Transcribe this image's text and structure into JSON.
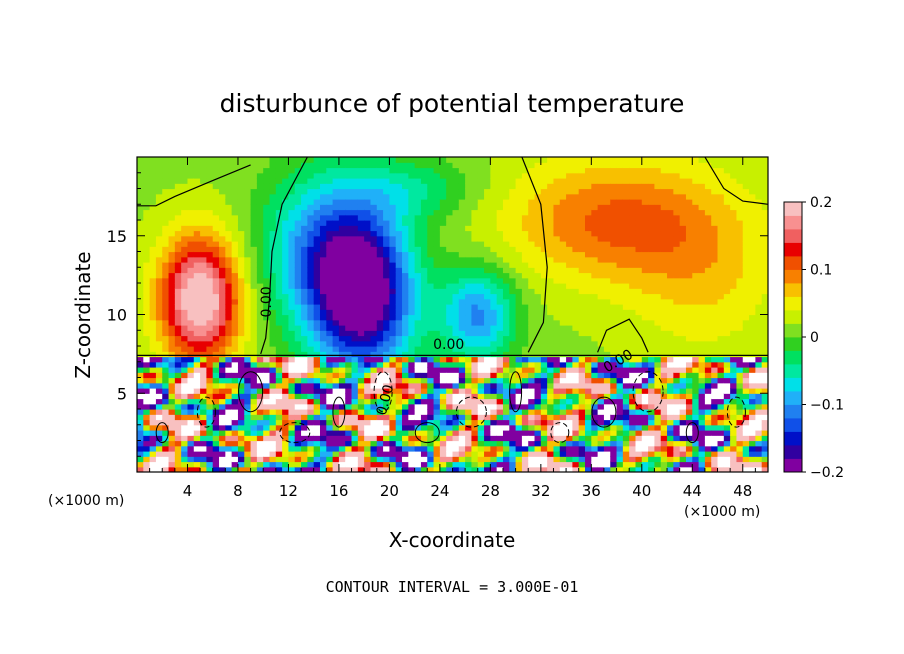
{
  "chart_data": {
    "type": "heatmap",
    "title": "disturbunce of potential temperature",
    "xlabel": "X-coordinate",
    "ylabel": "Z-coordinate",
    "x_unit_label": "(×1000 m)",
    "x_unit_label_right": "(×1000 m)",
    "xlim": [
      0,
      50
    ],
    "ylim": [
      0,
      20
    ],
    "x_ticks": [
      4,
      8,
      12,
      16,
      20,
      24,
      28,
      32,
      36,
      40,
      44,
      48
    ],
    "y_ticks": [
      5,
      10,
      15
    ],
    "colorbar": {
      "range": [
        -0.2,
        0.2
      ],
      "tick_values": [
        0.2,
        0.1,
        0,
        -0.1,
        -0.2
      ],
      "tick_labels": [
        "0.2",
        "0.1",
        "0",
        "−0.1",
        "−0.2"
      ],
      "colors": [
        "#8000a0",
        "#3000a0",
        "#0010c8",
        "#1050e8",
        "#2080f0",
        "#20b0f8",
        "#00e0e8",
        "#00e8a0",
        "#00e060",
        "#30d020",
        "#80e020",
        "#c8f000",
        "#f0f000",
        "#f8c000",
        "#f88000",
        "#f05000",
        "#e80000",
        "#f06060",
        "#f89090",
        "#f8c0c0"
      ]
    },
    "contour_labels": [
      "0.00",
      "0.00",
      "0.00",
      "0.00"
    ],
    "annotation": "CONTOUR INTERVAL = 3.000E-01",
    "field": {
      "description_values_in_theta_units": true,
      "blobs": [
        {
          "x": 5,
          "z": 11,
          "amp": 0.2,
          "sx": 3.2,
          "sz": 4
        },
        {
          "x": 18,
          "z": 11,
          "amp": -0.2,
          "sx": 4,
          "sz": 5
        },
        {
          "x": 15,
          "z": 14,
          "amp": -0.12,
          "sx": 5,
          "sz": 5
        },
        {
          "x": 27,
          "z": 10,
          "amp": -0.12,
          "sx": 3,
          "sz": 3
        },
        {
          "x": 38,
          "z": 16,
          "amp": 0.09,
          "sx": 9,
          "sz": 4
        },
        {
          "x": 45,
          "z": 12,
          "amp": 0.04,
          "sx": 6,
          "sz": 5
        },
        {
          "x": 22,
          "z": 18,
          "amp": -0.05,
          "sx": 5,
          "sz": 2
        }
      ]
    }
  }
}
